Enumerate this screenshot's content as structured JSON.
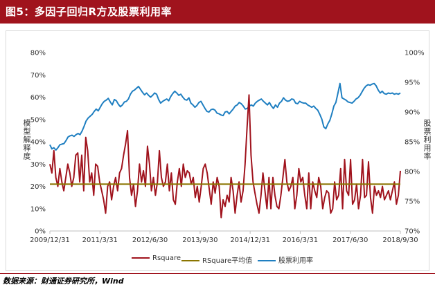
{
  "header": {
    "title": "图5：多因子回归R方及股票利用率"
  },
  "source": "数据来源：财通证券研究所，Wind",
  "colors": {
    "title_bg": "#a0131d",
    "rsquare": "#a0131d",
    "rsquare_avg": "#8b7500",
    "stock_util": "#1f7fc1"
  },
  "chart_data": {
    "type": "line",
    "y_left_label": "模型解释度",
    "y_right_label": "股票利用率",
    "y_left_ticks": [
      "0%",
      "10%",
      "20%",
      "30%",
      "40%",
      "50%",
      "60%",
      "70%",
      "80%"
    ],
    "y_right_ticks": [
      "70%",
      "75%",
      "80%",
      "85%",
      "90%",
      "95%",
      "100%"
    ],
    "ylim_left": [
      0,
      0.8
    ],
    "ylim_right": [
      0.7,
      1.0
    ],
    "x_ticks": [
      "2009/12/31",
      "2011/3/31",
      "2012/6/30",
      "2013/9/30",
      "2014/12/31",
      "2016/3/31",
      "2017/6/30",
      "2018/9/30"
    ],
    "grid": false,
    "legend": {
      "position": "bottom",
      "entries": [
        "Rsquare",
        "RSquare平均值",
        "股票利用率"
      ]
    },
    "series": [
      {
        "name": "Rsquare",
        "axis": "left",
        "values": [
          0.3,
          0.26,
          0.36,
          0.24,
          0.2,
          0.28,
          0.22,
          0.18,
          0.24,
          0.3,
          0.26,
          0.2,
          0.24,
          0.34,
          0.35,
          0.22,
          0.34,
          0.18,
          0.42,
          0.36,
          0.22,
          0.26,
          0.16,
          0.3,
          0.29,
          0.22,
          0.18,
          0.14,
          0.08,
          0.2,
          0.22,
          0.14,
          0.2,
          0.24,
          0.18,
          0.26,
          0.28,
          0.34,
          0.39,
          0.45,
          0.24,
          0.16,
          0.21,
          0.11,
          0.18,
          0.3,
          0.22,
          0.27,
          0.2,
          0.38,
          0.3,
          0.18,
          0.24,
          0.16,
          0.22,
          0.36,
          0.24,
          0.2,
          0.22,
          0.3,
          0.18,
          0.26,
          0.14,
          0.12,
          0.22,
          0.28,
          0.2,
          0.3,
          0.24,
          0.27,
          0.26,
          0.21,
          0.24,
          0.15,
          0.2,
          0.13,
          0.2,
          0.28,
          0.3,
          0.26,
          0.19,
          0.12,
          0.22,
          0.17,
          0.24,
          0.2,
          0.06,
          0.14,
          0.11,
          0.16,
          0.13,
          0.24,
          0.18,
          0.08,
          0.16,
          0.22,
          0.13,
          0.18,
          0.3,
          0.46,
          0.61,
          0.34,
          0.22,
          0.17,
          0.12,
          0.08,
          0.16,
          0.26,
          0.18,
          0.1,
          0.24,
          0.1,
          0.24,
          0.16,
          0.11,
          0.1,
          0.16,
          0.24,
          0.32,
          0.22,
          0.18,
          0.2,
          0.24,
          0.1,
          0.16,
          0.28,
          0.22,
          0.24,
          0.16,
          0.1,
          0.26,
          0.1,
          0.22,
          0.18,
          0.15,
          0.24,
          0.2,
          0.1,
          0.15,
          0.18,
          0.17,
          0.08,
          0.1,
          0.22,
          0.14,
          0.16,
          0.28,
          0.1,
          0.32,
          0.18,
          0.16,
          0.32,
          0.12,
          0.14,
          0.21,
          0.1,
          0.16,
          0.32,
          0.15,
          0.16,
          0.31,
          0.15,
          0.08,
          0.2,
          0.16,
          0.18,
          0.15,
          0.2,
          0.14,
          0.16,
          0.18,
          0.14,
          0.18,
          0.22,
          0.12,
          0.16,
          0.27
        ]
      },
      {
        "name": "RSquare平均值",
        "axis": "left",
        "values": [
          0.21
        ]
      },
      {
        "name": "股票利用率",
        "axis": "right",
        "values": [
          0.845,
          0.838,
          0.84,
          0.836,
          0.84,
          0.845,
          0.846,
          0.847,
          0.852,
          0.858,
          0.86,
          0.861,
          0.859,
          0.862,
          0.864,
          0.862,
          0.868,
          0.876,
          0.885,
          0.89,
          0.893,
          0.896,
          0.901,
          0.905,
          0.902,
          0.908,
          0.914,
          0.918,
          0.92,
          0.923,
          0.917,
          0.912,
          0.921,
          0.919,
          0.913,
          0.909,
          0.912,
          0.917,
          0.918,
          0.922,
          0.93,
          0.935,
          0.937,
          0.94,
          0.943,
          0.938,
          0.933,
          0.929,
          0.932,
          0.928,
          0.925,
          0.928,
          0.932,
          0.93,
          0.921,
          0.915,
          0.918,
          0.92,
          0.922,
          0.919,
          0.926,
          0.931,
          0.935,
          0.932,
          0.928,
          0.93,
          0.925,
          0.921,
          0.92,
          0.924,
          0.915,
          0.912,
          0.908,
          0.911,
          0.916,
          0.918,
          0.912,
          0.906,
          0.901,
          0.9,
          0.904,
          0.905,
          0.903,
          0.898,
          0.897,
          0.895,
          0.894,
          0.9,
          0.901,
          0.897,
          0.901,
          0.905,
          0.91,
          0.912,
          0.916,
          0.914,
          0.91,
          0.905,
          0.906,
          0.91,
          0.912,
          0.91,
          0.915,
          0.918,
          0.92,
          0.922,
          0.918,
          0.915,
          0.912,
          0.916,
          0.91,
          0.906,
          0.912,
          0.908,
          0.915,
          0.918,
          0.924,
          0.92,
          0.918,
          0.919,
          0.922,
          0.921,
          0.915,
          0.914,
          0.918,
          0.916,
          0.915,
          0.915,
          0.912,
          0.91,
          0.908,
          0.91,
          0.906,
          0.903,
          0.896,
          0.888,
          0.875,
          0.872,
          0.88,
          0.886,
          0.897,
          0.91,
          0.916,
          0.932,
          0.948,
          0.924,
          0.922,
          0.92,
          0.917,
          0.916,
          0.915,
          0.918,
          0.922,
          0.924,
          0.928,
          0.934,
          0.94,
          0.944,
          0.946,
          0.945,
          0.947,
          0.948,
          0.944,
          0.937,
          0.932,
          0.935,
          0.931,
          0.93,
          0.932,
          0.931,
          0.932,
          0.93,
          0.931,
          0.93,
          0.932
        ]
      }
    ]
  }
}
